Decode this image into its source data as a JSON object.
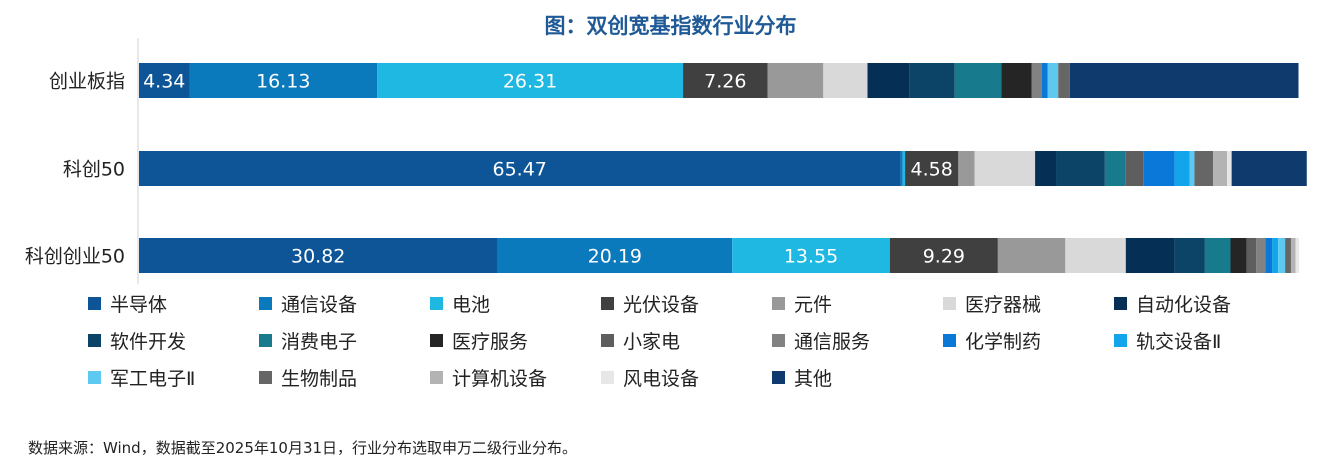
{
  "chart_data": {
    "type": "bar",
    "orientation": "horizontal",
    "stacked": true,
    "title": "图：双创宽基指数行业分布",
    "categories": [
      "创业板指",
      "科创50",
      "科创创业50"
    ],
    "series": [
      {
        "name": "半导体",
        "color": "#0d5597",
        "values": [
          4.34,
          65.47,
          30.82
        ]
      },
      {
        "name": "通信设备",
        "color": "#0b7abd",
        "values": [
          16.13,
          0.2,
          20.19
        ]
      },
      {
        "name": "电池",
        "color": "#1fb8e2",
        "values": [
          26.31,
          0.2,
          13.55
        ]
      },
      {
        "name": "光伏设备",
        "color": "#404040",
        "values": [
          7.26,
          4.58,
          9.29
        ]
      },
      {
        "name": "元件",
        "color": "#999999",
        "values": [
          4.8,
          1.4,
          5.8
        ]
      },
      {
        "name": "医疗器械",
        "color": "#d9d9d9",
        "values": [
          3.8,
          5.2,
          5.2
        ]
      },
      {
        "name": "自动化设备",
        "color": "#062f55",
        "values": [
          3.6,
          1.8,
          4.2
        ]
      },
      {
        "name": "软件开发",
        "color": "#0b4466",
        "values": [
          3.9,
          4.2,
          2.6
        ]
      },
      {
        "name": "消费电子",
        "color": "#177a8d",
        "values": [
          4.0,
          1.8,
          2.2
        ]
      },
      {
        "name": "医疗服务",
        "color": "#252525",
        "values": [
          2.6,
          0.0,
          1.4
        ]
      },
      {
        "name": "小家电",
        "color": "#5e5e5e",
        "values": [
          0.0,
          1.5,
          0.8
        ]
      },
      {
        "name": "通信服务",
        "color": "#828282",
        "values": [
          0.9,
          0.0,
          0.8
        ]
      },
      {
        "name": "化学制药",
        "color": "#0a78d8",
        "values": [
          0.5,
          2.7,
          0.6
        ]
      },
      {
        "name": "轨交设备Ⅱ",
        "color": "#12a5ec",
        "values": [
          0.0,
          1.3,
          0.5
        ]
      },
      {
        "name": "军工电子Ⅱ",
        "color": "#5dc9f0",
        "values": [
          0.9,
          0.4,
          0.6
        ]
      },
      {
        "name": "生物制品",
        "color": "#666666",
        "values": [
          1.0,
          1.6,
          0.5
        ]
      },
      {
        "name": "计算机设备",
        "color": "#b3b3b3",
        "values": [
          0.0,
          1.2,
          0.4
        ]
      },
      {
        "name": "风电设备",
        "color": "#e7e7e7",
        "values": [
          0.0,
          0.4,
          0.3
        ]
      },
      {
        "name": "其他",
        "color": "#0e3a6e",
        "values": [
          19.66,
          6.46,
          0.0
        ]
      }
    ],
    "data_labels": [
      {
        "category": "创业板指",
        "series": "半导体",
        "text": "4.34"
      },
      {
        "category": "创业板指",
        "series": "通信设备",
        "text": "16.13"
      },
      {
        "category": "创业板指",
        "series": "电池",
        "text": "26.31"
      },
      {
        "category": "创业板指",
        "series": "光伏设备",
        "text": "7.26"
      },
      {
        "category": "科创50",
        "series": "半导体",
        "text": "65.47"
      },
      {
        "category": "科创50",
        "series": "光伏设备",
        "text": "4.58"
      },
      {
        "category": "科创创业50",
        "series": "半导体",
        "text": "30.82"
      },
      {
        "category": "科创创业50",
        "series": "通信设备",
        "text": "20.19"
      },
      {
        "category": "科创创业50",
        "series": "电池",
        "text": "13.55"
      },
      {
        "category": "科创创业50",
        "series": "光伏设备",
        "text": "9.29"
      }
    ],
    "xlim": [
      0,
      100
    ],
    "grid": false,
    "legend_position": "bottom"
  },
  "source_note": "数据来源：Wind，数据截至2025年10月31日，行业分布选取申万二级行业分布。"
}
